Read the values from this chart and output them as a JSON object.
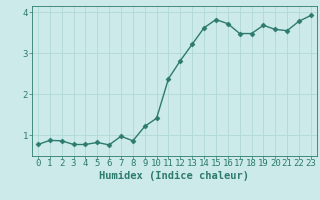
{
  "x": [
    0,
    1,
    2,
    3,
    4,
    5,
    6,
    7,
    8,
    9,
    10,
    11,
    12,
    13,
    14,
    15,
    16,
    17,
    18,
    19,
    20,
    21,
    22,
    23
  ],
  "y": [
    0.78,
    0.88,
    0.87,
    0.78,
    0.78,
    0.83,
    0.77,
    0.98,
    0.87,
    1.22,
    1.42,
    2.38,
    2.82,
    3.22,
    3.62,
    3.82,
    3.72,
    3.48,
    3.48,
    3.68,
    3.58,
    3.55,
    3.78,
    3.92
  ],
  "line_color": "#2d7a6e",
  "marker": "D",
  "marker_size": 2.5,
  "bg_color": "#cceaea",
  "grid_color": "#b0d8d8",
  "xlabel": "Humidex (Indice chaleur)",
  "xlim": [
    -0.5,
    23.5
  ],
  "ylim": [
    0.5,
    4.15
  ],
  "yticks": [
    1,
    2,
    3,
    4
  ],
  "xticks": [
    0,
    1,
    2,
    3,
    4,
    5,
    6,
    7,
    8,
    9,
    10,
    11,
    12,
    13,
    14,
    15,
    16,
    17,
    18,
    19,
    20,
    21,
    22,
    23
  ],
  "tick_color": "#2d7a6e",
  "label_color": "#2d7a6e",
  "xlabel_fontsize": 7.5,
  "tick_fontsize": 6.5,
  "linewidth": 1.0
}
